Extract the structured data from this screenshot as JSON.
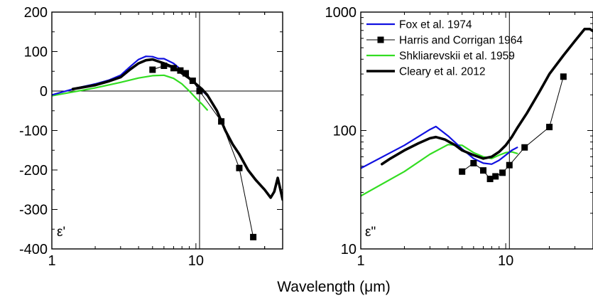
{
  "figure": {
    "xlabel": "Wavelength (μm)"
  },
  "chart_data": [
    {
      "type": "line",
      "panel_label": "ε'",
      "xscale": "log",
      "xlim": [
        1,
        40
      ],
      "ylim": [
        -400,
        200
      ],
      "x_ticks": [
        1,
        10
      ],
      "y_ticks": [
        -400,
        -300,
        -200,
        -100,
        0,
        100,
        200
      ],
      "zero_line": true,
      "vertical_line_x": 10.6,
      "series": [
        {
          "name": "Fox et al. 1974",
          "color": "#1010e0",
          "x": [
            1.0,
            1.5,
            2.0,
            2.5,
            3.0,
            3.5,
            4.0,
            4.5,
            5.0,
            5.5,
            6.0,
            7.0,
            8.0,
            9.0,
            10.0,
            11.0,
            12.0
          ],
          "y": [
            -10,
            8,
            18,
            28,
            40,
            62,
            80,
            88,
            87,
            82,
            82,
            70,
            52,
            33,
            16,
            2,
            -12
          ]
        },
        {
          "name": "Harris and Corrigan 1964",
          "color": "#000000",
          "markers": true,
          "x": [
            5.0,
            6.0,
            7.0,
            7.8,
            8.5,
            9.5,
            10.6,
            15.0,
            20.0,
            25.0
          ],
          "y": [
            54,
            64,
            58,
            52,
            45,
            26,
            0,
            -77,
            -195,
            -370
          ]
        },
        {
          "name": "Shkliarevskii et al. 1959",
          "color": "#33dd22",
          "x": [
            1.0,
            2.0,
            3.0,
            4.0,
            5.0,
            6.0,
            7.0,
            8.0,
            9.0,
            10.0,
            11.0,
            12.0
          ],
          "y": [
            -12,
            8,
            22,
            33,
            39,
            40,
            32,
            18,
            0,
            -18,
            -33,
            -48
          ]
        },
        {
          "name": "Cleary et al. 2012",
          "color": "#000000",
          "x": [
            1.4,
            2.0,
            2.5,
            3.0,
            3.5,
            4.0,
            4.5,
            5.0,
            5.5,
            6.0,
            7.0,
            8.0,
            9.0,
            10.0,
            11.0,
            12.0,
            14.0,
            16.0,
            18.0,
            20.0,
            23.0,
            26.0,
            30.0,
            33.0,
            35.0,
            37.0,
            40.0
          ],
          "y": [
            5,
            15,
            25,
            35,
            55,
            70,
            78,
            80,
            75,
            70,
            60,
            45,
            32,
            18,
            5,
            -10,
            -50,
            -100,
            -135,
            -160,
            -200,
            -225,
            -250,
            -270,
            -255,
            -220,
            -275
          ]
        }
      ]
    },
    {
      "type": "line",
      "panel_label": "ε\"",
      "xscale": "log",
      "yscale": "log",
      "xlim": [
        1,
        40
      ],
      "ylim": [
        10,
        1000
      ],
      "x_ticks": [
        1,
        10
      ],
      "y_ticks": [
        10,
        100,
        1000
      ],
      "vertical_line_x": 10.6,
      "legend_position": "top-left",
      "series": [
        {
          "name": "Fox et al. 1974",
          "color": "#1010e0",
          "x": [
            1.0,
            2.0,
            3.0,
            3.3,
            4.0,
            5.0,
            6.0,
            7.0,
            8.0,
            9.0,
            10.0,
            11.0,
            12.0
          ],
          "y": [
            48,
            75,
            102,
            108,
            90,
            70,
            58,
            53,
            52,
            56,
            62,
            68,
            72
          ]
        },
        {
          "name": "Harris and Corrigan 1964",
          "color": "#000000",
          "markers": true,
          "x": [
            5.0,
            6.0,
            7.0,
            7.8,
            8.5,
            9.5,
            10.6,
            13.5,
            20.0,
            25.0
          ],
          "y": [
            45,
            53,
            46,
            39,
            41,
            44,
            51,
            72,
            107,
            285
          ]
        },
        {
          "name": "Shkliarevskii et al. 1959",
          "color": "#33dd22",
          "x": [
            1.0,
            2.0,
            3.0,
            4.0,
            5.0,
            6.0,
            7.0,
            8.0,
            9.0,
            10.0,
            11.0,
            12.0
          ],
          "y": [
            28,
            45,
            63,
            76,
            75,
            65,
            60,
            58,
            62,
            65,
            66,
            64
          ]
        },
        {
          "name": "Cleary et al. 2012",
          "color": "#000000",
          "x": [
            1.4,
            1.6,
            2.0,
            2.5,
            3.0,
            3.3,
            3.8,
            4.5,
            5.0,
            6.0,
            7.0,
            8.0,
            9.0,
            10.0,
            11.0,
            12.0,
            14.0,
            17.0,
            20.0,
            25.0,
            30.0,
            35.0,
            38.0,
            40.0
          ],
          "y": [
            52,
            58,
            68,
            78,
            86,
            88,
            84,
            75,
            68,
            62,
            58,
            60,
            66,
            75,
            88,
            105,
            140,
            210,
            300,
            430,
            570,
            720,
            720,
            690
          ]
        }
      ]
    }
  ]
}
